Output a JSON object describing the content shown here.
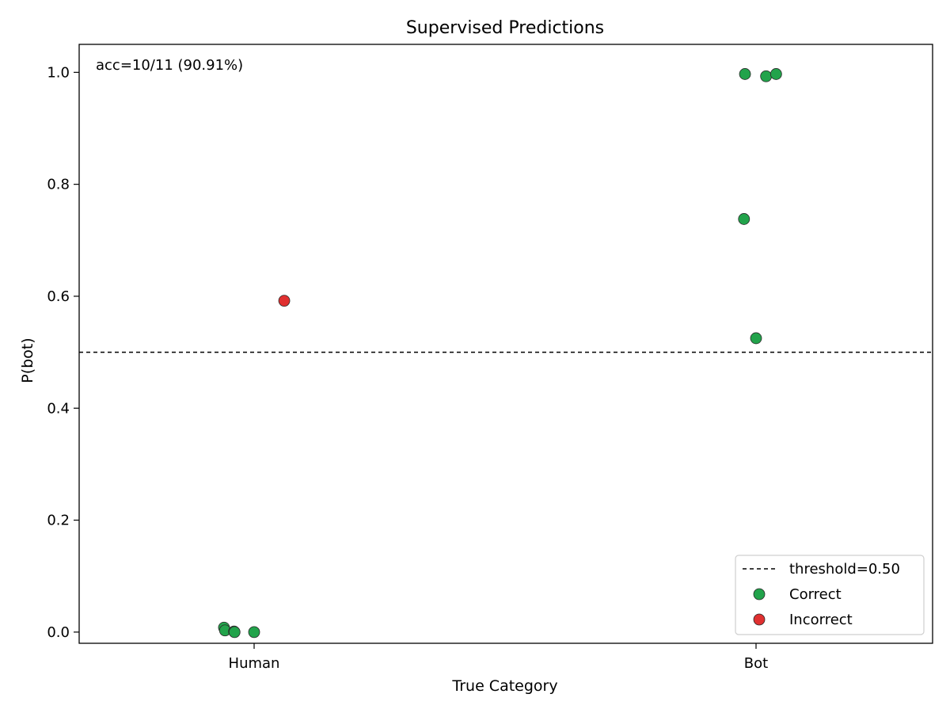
{
  "chart_data": {
    "type": "scatter",
    "title": "Supervised Predictions",
    "xlabel": "True Category",
    "ylabel": "P(bot)",
    "categories": [
      "Human",
      "Bot"
    ],
    "ylim": [
      -0.02,
      1.05
    ],
    "yticks": [
      "0.0",
      "0.2",
      "0.4",
      "0.6",
      "0.8",
      "1.0"
    ],
    "annotation": "acc=10/11 (90.91%)",
    "threshold": 0.5,
    "legend": {
      "threshold_label": "threshold=0.50",
      "correct_label": "Correct",
      "incorrect_label": "Incorrect",
      "placement": "lower-right"
    },
    "colors": {
      "correct": "#22a34b",
      "incorrect": "#e03030"
    },
    "points": [
      {
        "category": "Human",
        "jitter": -0.06,
        "y": 0.008,
        "status": "correct"
      },
      {
        "category": "Human",
        "jitter": -0.058,
        "y": 0.003,
        "status": "correct"
      },
      {
        "category": "Human",
        "jitter": -0.04,
        "y": 0.001,
        "status": "correct"
      },
      {
        "category": "Human",
        "jitter": -0.039,
        "y": 0.0,
        "status": "correct"
      },
      {
        "category": "Human",
        "jitter": 0.0,
        "y": 0.0,
        "status": "correct"
      },
      {
        "category": "Human",
        "jitter": 0.06,
        "y": 0.592,
        "status": "incorrect"
      },
      {
        "category": "Bot",
        "jitter": -0.022,
        "y": 0.997,
        "status": "correct"
      },
      {
        "category": "Bot",
        "jitter": 0.02,
        "y": 0.993,
        "status": "correct"
      },
      {
        "category": "Bot",
        "jitter": 0.04,
        "y": 0.997,
        "status": "correct"
      },
      {
        "category": "Bot",
        "jitter": -0.024,
        "y": 0.738,
        "status": "correct"
      },
      {
        "category": "Bot",
        "jitter": 0.0,
        "y": 0.525,
        "status": "correct"
      }
    ]
  }
}
